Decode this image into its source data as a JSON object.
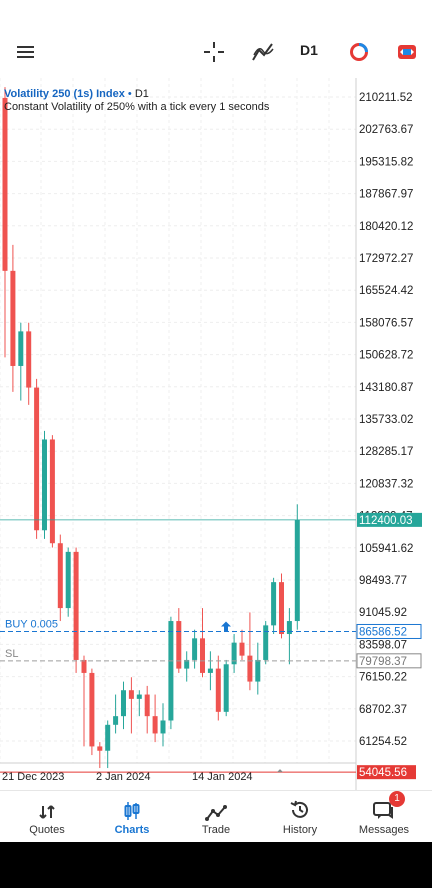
{
  "toolbar": {
    "menu_icon": "hamburger-icon",
    "crosshair_icon": "crosshair-icon",
    "indicators_icon": "indicators-icon",
    "timeframe": "D1",
    "objects_icon": "objects-icon",
    "trade_icon": "trade-icon"
  },
  "chart": {
    "symbol": "Volatility 250 (1s) Index",
    "symbol_sep": " • ",
    "period": "D1",
    "description": "Constant Volatility of 250% with a tick every 1 seconds"
  },
  "chart_data": {
    "type": "candlestick",
    "y_ticks": [
      "210211.52",
      "202763.67",
      "195315.82",
      "187867.97",
      "180420.12",
      "172972.27",
      "165524.42",
      "158076.57",
      "150628.72",
      "143180.87",
      "135733.02",
      "128285.17",
      "120837.32",
      "113389.47",
      "105941.62",
      "98493.77",
      "91045.92",
      "83598.07",
      "76150.22",
      "68702.37",
      "61254.52"
    ],
    "ylim": [
      54045.56,
      213000
    ],
    "x_labels": [
      "21 Dec 2023",
      "2 Jan 2024",
      "14 Jan 2024"
    ],
    "current_price": "112400.03",
    "buy_label": "BUY 0.005",
    "buy_price": "86586.52",
    "sl_label": "SL",
    "sl_price": "79798.37",
    "low_price": "54045.56",
    "colors": {
      "up": "#26a69a",
      "down": "#ef5350",
      "buy_line": "#1976d2",
      "sl_line": "#9e9e9e",
      "current": "#26a69a",
      "low_line": "#e53935"
    },
    "candles": [
      {
        "o": 210000,
        "h": 212500,
        "l": 150000,
        "c": 170000
      },
      {
        "o": 170000,
        "h": 176000,
        "l": 142000,
        "c": 148000
      },
      {
        "o": 148000,
        "h": 158000,
        "l": 140000,
        "c": 156000
      },
      {
        "o": 156000,
        "h": 158000,
        "l": 139000,
        "c": 143000
      },
      {
        "o": 143000,
        "h": 145000,
        "l": 108000,
        "c": 110000
      },
      {
        "o": 110000,
        "h": 133000,
        "l": 108000,
        "c": 131000
      },
      {
        "o": 131000,
        "h": 132000,
        "l": 106000,
        "c": 107000
      },
      {
        "o": 107000,
        "h": 109000,
        "l": 89000,
        "c": 92000
      },
      {
        "o": 92000,
        "h": 106000,
        "l": 90000,
        "c": 105000
      },
      {
        "o": 105000,
        "h": 106000,
        "l": 77000,
        "c": 80000
      },
      {
        "o": 80000,
        "h": 81000,
        "l": 60000,
        "c": 77000
      },
      {
        "o": 77000,
        "h": 78000,
        "l": 58000,
        "c": 60000
      },
      {
        "o": 60000,
        "h": 61000,
        "l": 55000,
        "c": 59000
      },
      {
        "o": 59000,
        "h": 66000,
        "l": 55000,
        "c": 65000
      },
      {
        "o": 65000,
        "h": 72000,
        "l": 63000,
        "c": 67000
      },
      {
        "o": 67000,
        "h": 75000,
        "l": 64000,
        "c": 73000
      },
      {
        "o": 73000,
        "h": 76000,
        "l": 63000,
        "c": 71000
      },
      {
        "o": 71000,
        "h": 73000,
        "l": 67000,
        "c": 72000
      },
      {
        "o": 72000,
        "h": 74000,
        "l": 63000,
        "c": 67000
      },
      {
        "o": 67000,
        "h": 72000,
        "l": 61000,
        "c": 63000
      },
      {
        "o": 63000,
        "h": 70000,
        "l": 60000,
        "c": 66000
      },
      {
        "o": 66000,
        "h": 90000,
        "l": 64000,
        "c": 89000
      },
      {
        "o": 89000,
        "h": 92000,
        "l": 77000,
        "c": 78000
      },
      {
        "o": 78000,
        "h": 82000,
        "l": 75000,
        "c": 80000
      },
      {
        "o": 80000,
        "h": 87000,
        "l": 78000,
        "c": 85000
      },
      {
        "o": 85000,
        "h": 92000,
        "l": 76000,
        "c": 77000
      },
      {
        "o": 77000,
        "h": 82000,
        "l": 73000,
        "c": 78000
      },
      {
        "o": 78000,
        "h": 81000,
        "l": 66000,
        "c": 68000
      },
      {
        "o": 68000,
        "h": 80000,
        "l": 67000,
        "c": 79000
      },
      {
        "o": 79000,
        "h": 86000,
        "l": 77000,
        "c": 84000
      },
      {
        "o": 84000,
        "h": 87000,
        "l": 80000,
        "c": 81000
      },
      {
        "o": 81000,
        "h": 91000,
        "l": 73000,
        "c": 75000
      },
      {
        "o": 75000,
        "h": 84000,
        "l": 72000,
        "c": 80000
      },
      {
        "o": 80000,
        "h": 89000,
        "l": 79000,
        "c": 88000
      },
      {
        "o": 88000,
        "h": 99000,
        "l": 86000,
        "c": 98000
      },
      {
        "o": 98000,
        "h": 100000,
        "l": 85000,
        "c": 86000
      },
      {
        "o": 86000,
        "h": 92000,
        "l": 79000,
        "c": 89000
      },
      {
        "o": 89000,
        "h": 116000,
        "l": 87000,
        "c": 112400
      }
    ]
  },
  "nav": {
    "items": [
      {
        "label": "Quotes",
        "icon": "quotes-icon"
      },
      {
        "label": "Charts",
        "icon": "charts-icon"
      },
      {
        "label": "Trade",
        "icon": "trade-line-icon"
      },
      {
        "label": "History",
        "icon": "history-icon"
      },
      {
        "label": "Messages",
        "icon": "messages-icon"
      }
    ],
    "messages_badge": "1"
  }
}
